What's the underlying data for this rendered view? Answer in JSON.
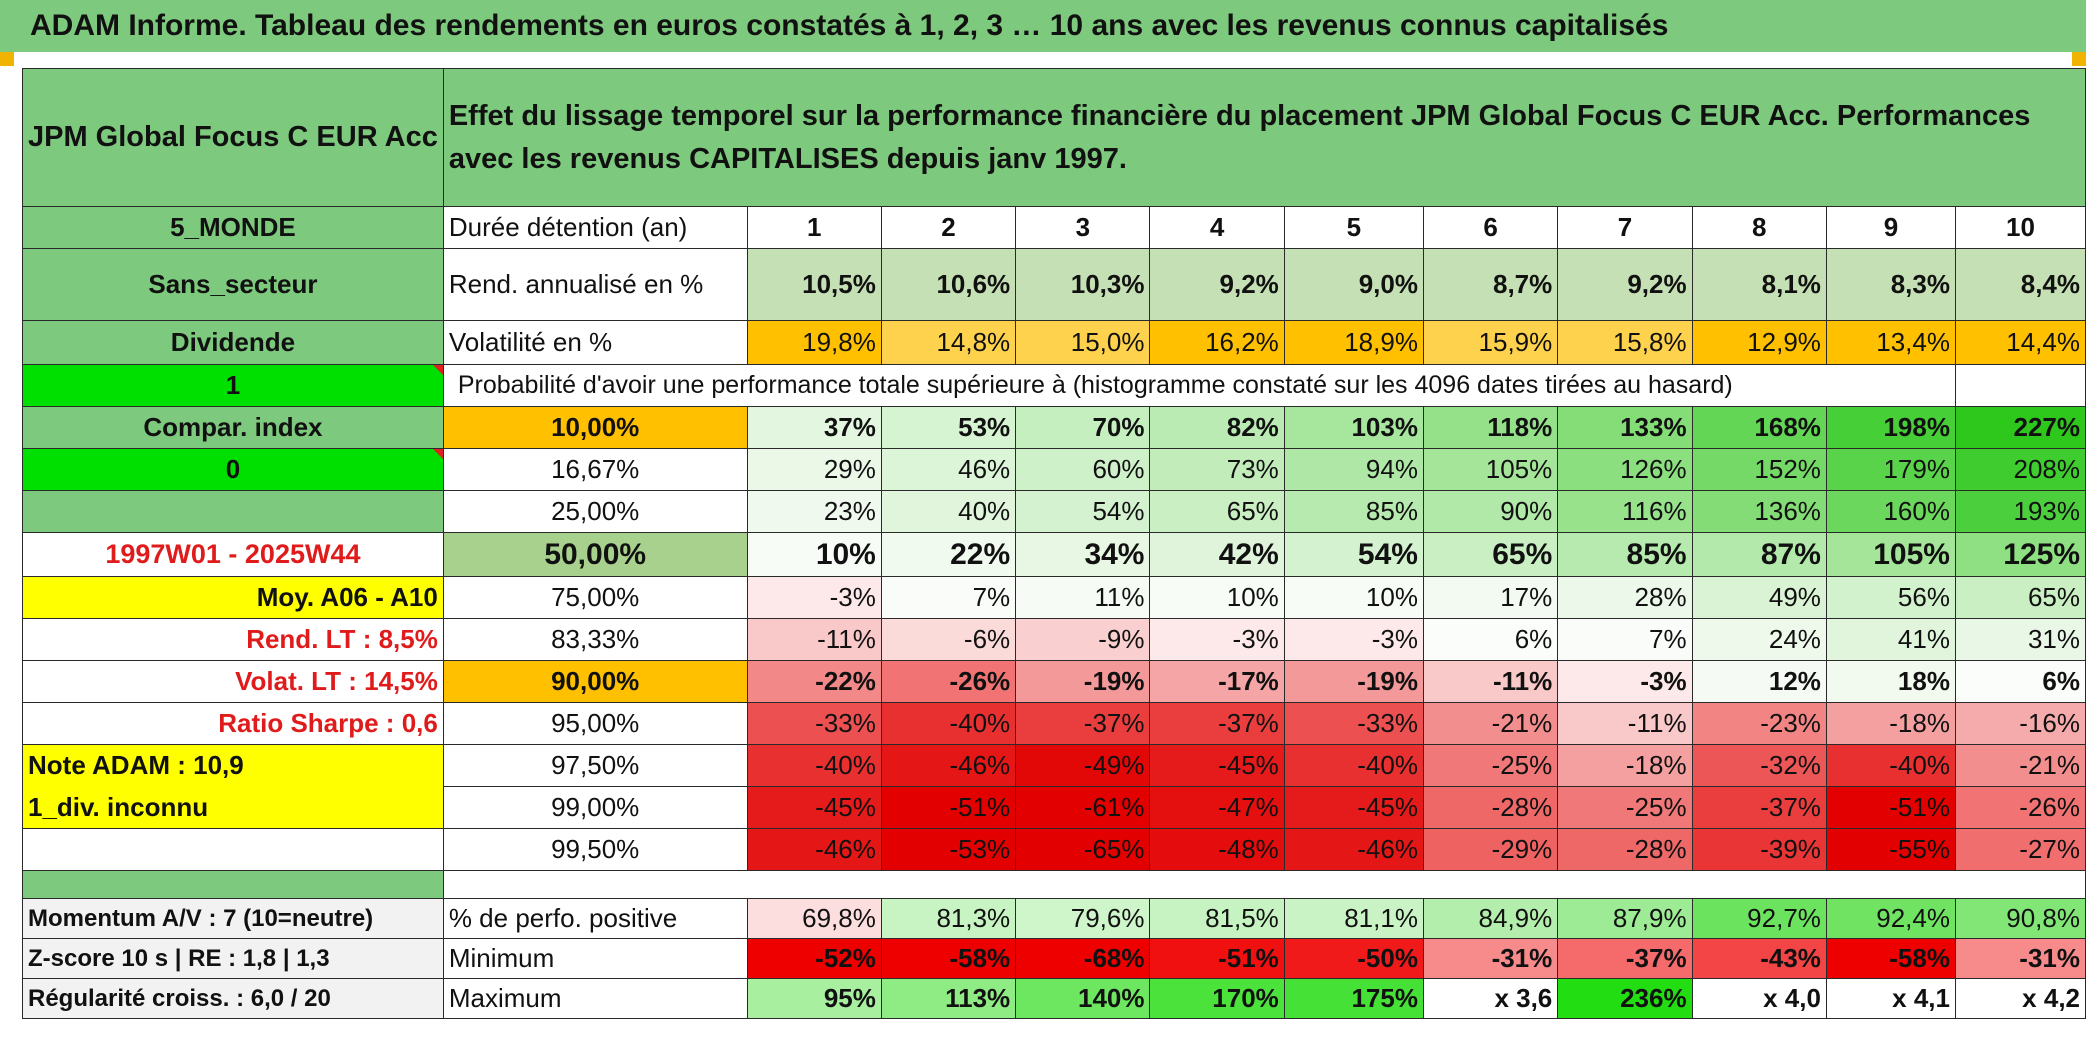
{
  "title": "ADAM Informe. Tableau des rendements en euros constatés à 1, 2, 3 … 10 ans avec les revenus connus capitalisés",
  "fund_name": "JPM Global Focus C EUR Acc",
  "description": "Effet du lissage temporel sur la performance financière du placement JPM Global Focus C EUR Acc. Performances avec les revenus CAPITALISES depuis janv 1997.",
  "left_labels": {
    "zone": "5_MONDE",
    "sector": "Sans_secteur",
    "dividend": "Dividende",
    "one": "1",
    "compar": "Compar. index",
    "zero": "0",
    "period": "1997W01 - 2025W44",
    "moy": "Moy. A06 - A10",
    "rend_lt": "Rend. LT :   8,5%",
    "volat_lt": "Volat. LT :   14,5%",
    "sharpe": "Ratio Sharpe :    0,6",
    "note": "Note ADAM : 10,9",
    "div_inconnu": "1_div. inconnu"
  },
  "header_row": {
    "label": "Durée détention (an)",
    "years": [
      "1",
      "2",
      "3",
      "4",
      "5",
      "6",
      "7",
      "8",
      "9",
      "10"
    ]
  },
  "rend_row": {
    "label": "Rend. annualisé en %",
    "values": [
      "10,5%",
      "10,6%",
      "10,3%",
      "9,2%",
      "9,0%",
      "8,7%",
      "9,2%",
      "8,1%",
      "8,3%",
      "8,4%"
    ]
  },
  "vol_row": {
    "label": "Volatilité en %",
    "values": [
      "19,8%",
      "14,8%",
      "15,0%",
      "16,2%",
      "18,9%",
      "15,9%",
      "15,8%",
      "12,9%",
      "13,4%",
      "14,4%"
    ]
  },
  "prob_caption": "Probabilité d'avoir une performance totale supérieure à (histogramme constaté sur les 4096 dates tirées au hasard)",
  "prob_rows": [
    {
      "pct": "10,00%",
      "values": [
        "37%",
        "53%",
        "70%",
        "82%",
        "103%",
        "118%",
        "133%",
        "168%",
        "198%",
        "227%"
      ],
      "colors": [
        "#e3f6df",
        "#d6f3d2",
        "#c6efc0",
        "#b9ebb2",
        "#a7e69d",
        "#95e189",
        "#85dd78",
        "#63d655",
        "#46cf37",
        "#2ec81d"
      ]
    },
    {
      "pct": "16,67%",
      "values": [
        "29%",
        "46%",
        "60%",
        "73%",
        "94%",
        "105%",
        "126%",
        "152%",
        "179%",
        "208%"
      ],
      "colors": [
        "#ebf8e8",
        "#dcf4d8",
        "#cff1ca",
        "#c2edbb",
        "#afe8a6",
        "#a4e599",
        "#8cdf7f",
        "#74d966",
        "#58d34a",
        "#3ecc2e"
      ]
    },
    {
      "pct": "25,00%",
      "values": [
        "23%",
        "40%",
        "54%",
        "65%",
        "85%",
        "90%",
        "116%",
        "136%",
        "160%",
        "193%"
      ],
      "colors": [
        "#eff9ed",
        "#e0f5dc",
        "#d4f2cf",
        "#c9efc3",
        "#b6eaae",
        "#b1e9a8",
        "#97e28b",
        "#83dc75",
        "#6bd75d",
        "#4ccf3d"
      ]
    },
    {
      "pct": "50,00%",
      "values": [
        "10%",
        "22%",
        "34%",
        "42%",
        "54%",
        "65%",
        "85%",
        "87%",
        "105%",
        "125%"
      ],
      "colors": [
        "#f8fcf7",
        "#f0faee",
        "#e7f7e4",
        "#dff4db",
        "#d4f2cf",
        "#c9efc3",
        "#b6eaae",
        "#b3e9ab",
        "#a4e599",
        "#8fe082"
      ]
    },
    {
      "pct": "75,00%",
      "values": [
        "-3%",
        "7%",
        "11%",
        "10%",
        "10%",
        "17%",
        "28%",
        "49%",
        "56%",
        "65%"
      ],
      "colors": [
        "#fde9e9",
        "#f9fcf8",
        "#f6fbf5",
        "#f7fcf6",
        "#f7fcf6",
        "#f3faf1",
        "#ecf8ea",
        "#d9f3d4",
        "#d2f1cd",
        "#c9efc3"
      ]
    },
    {
      "pct": "83,33%",
      "values": [
        "-11%",
        "-6%",
        "-9%",
        "-3%",
        "-3%",
        "6%",
        "7%",
        "24%",
        "41%",
        "31%"
      ],
      "colors": [
        "#f9c8c8",
        "#fbdada",
        "#facfcf",
        "#fde9e9",
        "#fde9e9",
        "#fafdf9",
        "#f9fcf8",
        "#eef9ec",
        "#e0f5dc",
        "#e9f7e6"
      ]
    },
    {
      "pct": "90,00%",
      "values": [
        "-22%",
        "-26%",
        "-19%",
        "-17%",
        "-19%",
        "-11%",
        "-3%",
        "12%",
        "18%",
        "6%"
      ],
      "colors": [
        "#f38888",
        "#f17373",
        "#f49999",
        "#f5a5a5",
        "#f49999",
        "#f9c8c8",
        "#fde9e9",
        "#f5fbf4",
        "#f2faf0",
        "#fafdf9"
      ]
    },
    {
      "pct": "95,00%",
      "values": [
        "-33%",
        "-40%",
        "-37%",
        "-37%",
        "-33%",
        "-21%",
        "-11%",
        "-23%",
        "-18%",
        "-16%"
      ],
      "colors": [
        "#ec5050",
        "#e83030",
        "#ea3e3e",
        "#ea3e3e",
        "#ec5050",
        "#f38e8e",
        "#f9c8c8",
        "#f28484",
        "#f4a0a0",
        "#f5abab"
      ]
    },
    {
      "pct": "97,50%",
      "values": [
        "-40%",
        "-46%",
        "-49%",
        "-45%",
        "-40%",
        "-25%",
        "-18%",
        "-32%",
        "-40%",
        "-21%"
      ],
      "colors": [
        "#e83030",
        "#e51616",
        "#e30808",
        "#e51a1a",
        "#e83030",
        "#f17878",
        "#f4a0a0",
        "#ed5656",
        "#e83030",
        "#f38e8e"
      ]
    },
    {
      "pct": "99,00%",
      "values": [
        "-45%",
        "-51%",
        "-61%",
        "-47%",
        "-45%",
        "-28%",
        "-25%",
        "-37%",
        "-51%",
        "-26%"
      ],
      "colors": [
        "#e51a1a",
        "#e20000",
        "#e20000",
        "#e41010",
        "#e51a1a",
        "#ef6868",
        "#f17878",
        "#ea3e3e",
        "#e20000",
        "#f17373"
      ]
    },
    {
      "pct": "99,50%",
      "values": [
        "-46%",
        "-53%",
        "-65%",
        "-48%",
        "-46%",
        "-29%",
        "-28%",
        "-39%",
        "-55%",
        "-27%"
      ],
      "colors": [
        "#e51616",
        "#e20000",
        "#e20000",
        "#e40c0c",
        "#e51616",
        "#ee6262",
        "#ef6868",
        "#e93535",
        "#e20000",
        "#f06e6e"
      ]
    }
  ],
  "bottom_rows": [
    {
      "left": "Momentum A/V : 7 (10=neutre)",
      "label": "% de perfo. positive",
      "values": [
        "69,8%",
        "81,3%",
        "79,6%",
        "81,5%",
        "81,1%",
        "84,9%",
        "87,9%",
        "92,7%",
        "92,4%",
        "90,8%"
      ],
      "colors": [
        "#fddede",
        "#c8f3c3",
        "#cff5ca",
        "#c6f3c1",
        "#c9f3c4",
        "#b3eeac",
        "#9deb95",
        "#6ce35f",
        "#70e363",
        "#82e677"
      ]
    },
    {
      "left": "Z-score 10 s | RE : 1,8 | 1,3",
      "label": "Minimum",
      "values": [
        "-52%",
        "-58%",
        "-68%",
        "-51%",
        "-50%",
        "-31%",
        "-37%",
        "-43%",
        "-58%",
        "-31%"
      ],
      "colors": [
        "#ee0000",
        "#ee0000",
        "#ee0000",
        "#f01010",
        "#f11a1a",
        "#f78b8b",
        "#f56a6a",
        "#f34545",
        "#ee0000",
        "#f78b8b"
      ]
    },
    {
      "left": "Régularité croiss. : 6,0 / 20",
      "label": "Maximum",
      "values": [
        "95%",
        "113%",
        "140%",
        "170%",
        "175%",
        "x 3,6",
        "236%",
        "x 4,0",
        "x 4,1",
        "x 4,2"
      ],
      "colors": [
        "#a8f0a0",
        "#8fec85",
        "#6ce75f",
        "#4ce23c",
        "#46e136",
        "#ffffff",
        "#22dd11",
        "#ffffff",
        "#ffffff",
        "#ffffff"
      ]
    }
  ],
  "colors": {
    "header_green": "#7dc97d",
    "lime": "#00e000",
    "orange": "#ffc000",
    "yellow": "#ffff00",
    "rend_bg": "#c5e0b4",
    "red_text": "#e01b1b"
  }
}
